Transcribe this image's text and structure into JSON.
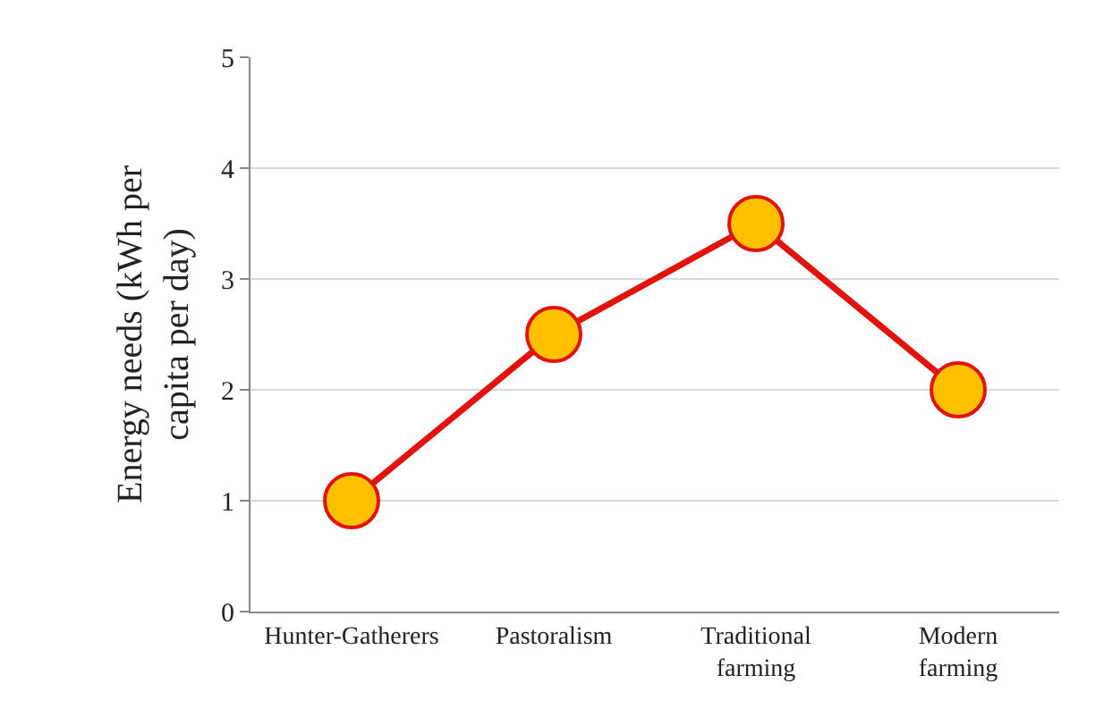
{
  "chart_data": {
    "type": "line",
    "categories": [
      "Hunter-Gatherers",
      "Pastoralism",
      "Traditional farming",
      "Modern farming"
    ],
    "series": [
      {
        "color": "#e0140c",
        "values": [
          1,
          2.5,
          3.5,
          2
        ]
      }
    ],
    "ylabel": "Energy needs (kWh per capita per day)",
    "ylim": [
      0,
      5
    ],
    "yticks": [
      0,
      1,
      2,
      3,
      4,
      5
    ],
    "grid": "y",
    "marker": "circle",
    "line_style": "solid"
  }
}
